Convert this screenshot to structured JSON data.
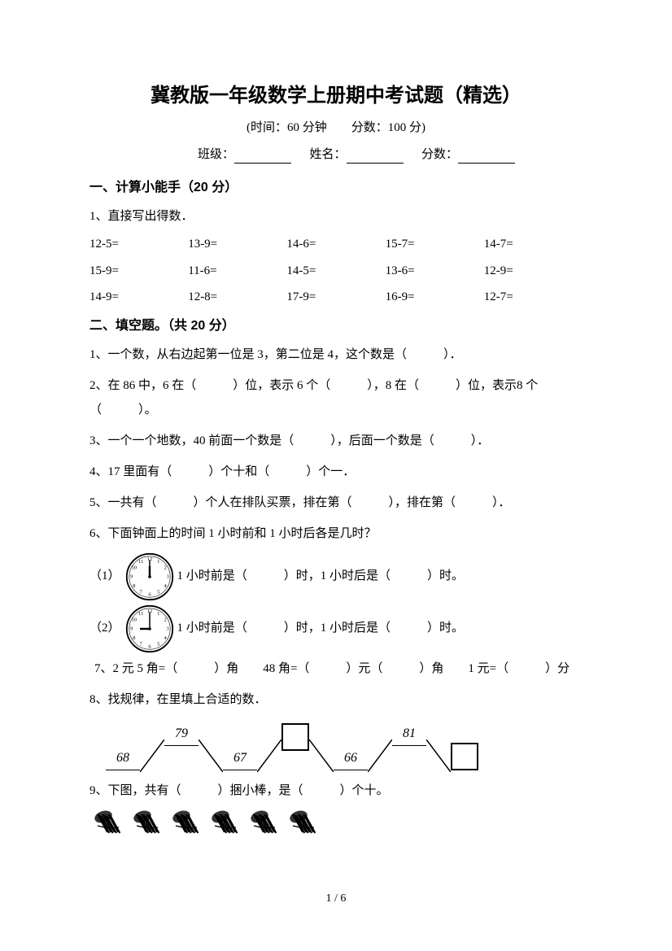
{
  "title": "冀教版一年级数学上册期中考试题（精选）",
  "subtitle": "(时间：60 分钟　　分数：100 分)",
  "info": {
    "class_label": "班级：",
    "name_label": "姓名：",
    "score_label": "分数："
  },
  "section1": {
    "header": "一、计算小能手（20 分）",
    "q1_label": "1、直接写出得数．",
    "grid": [
      [
        "12-5=",
        "13-9=",
        "14-6=",
        "15-7=",
        "14-7="
      ],
      [
        "15-9=",
        "11-6=",
        "14-5=",
        "13-6=",
        "12-9="
      ],
      [
        "14-9=",
        "12-8=",
        "17-9=",
        "16-9=",
        "12-7="
      ]
    ]
  },
  "section2": {
    "header": "二、填空题。（共 20 分）",
    "q1": "1、一个数，从右边起第一位是 3，第二位是 4，这个数是（　　　）．",
    "q2": "2、在 86 中，6 在（　　　）位，表示 6 个（　　　），8 在（　　　）位，表示8 个（　　　）。",
    "q3": "3、一个一个地数，40 前面一个数是（　　　），后面一个数是（　　　）．",
    "q4": "4、17 里面有（　　　）个十和（　　　）个一．",
    "q5": "5、一共有（　　　）个人在排队买票，排在第（　　　），排在第（　　　）．",
    "q6_intro": "6、下面钟面上的时间 1 小时前和 1 小时后各是几时？",
    "q6_1_label": "（1）",
    "q6_1_text": "1 小时前是（　　　）时，1 小时后是（　　　）时。",
    "q6_2_label": "（2）",
    "q6_2_text": "1 小时前是（　　　）时，1 小时后是（　　　）时。",
    "q7": "7、2 元 5 角=（　　　）角　　48 角=（　　　）元（　　　）角　　1 元=（　　　）分",
    "q8_intro": "8、找规律，在里填上合适的数．",
    "pattern": [
      "68",
      "79",
      "67",
      "",
      "66",
      "81",
      ""
    ],
    "q9": "9、下图，共有（　　　）捆小棒，是（　　　）个十。"
  },
  "clock1": {
    "hour": 12,
    "minute": 0
  },
  "clock2": {
    "hour": 9,
    "minute": 0
  },
  "footer": "1 / 6",
  "colors": {
    "text": "#000000",
    "bg": "#ffffff"
  }
}
